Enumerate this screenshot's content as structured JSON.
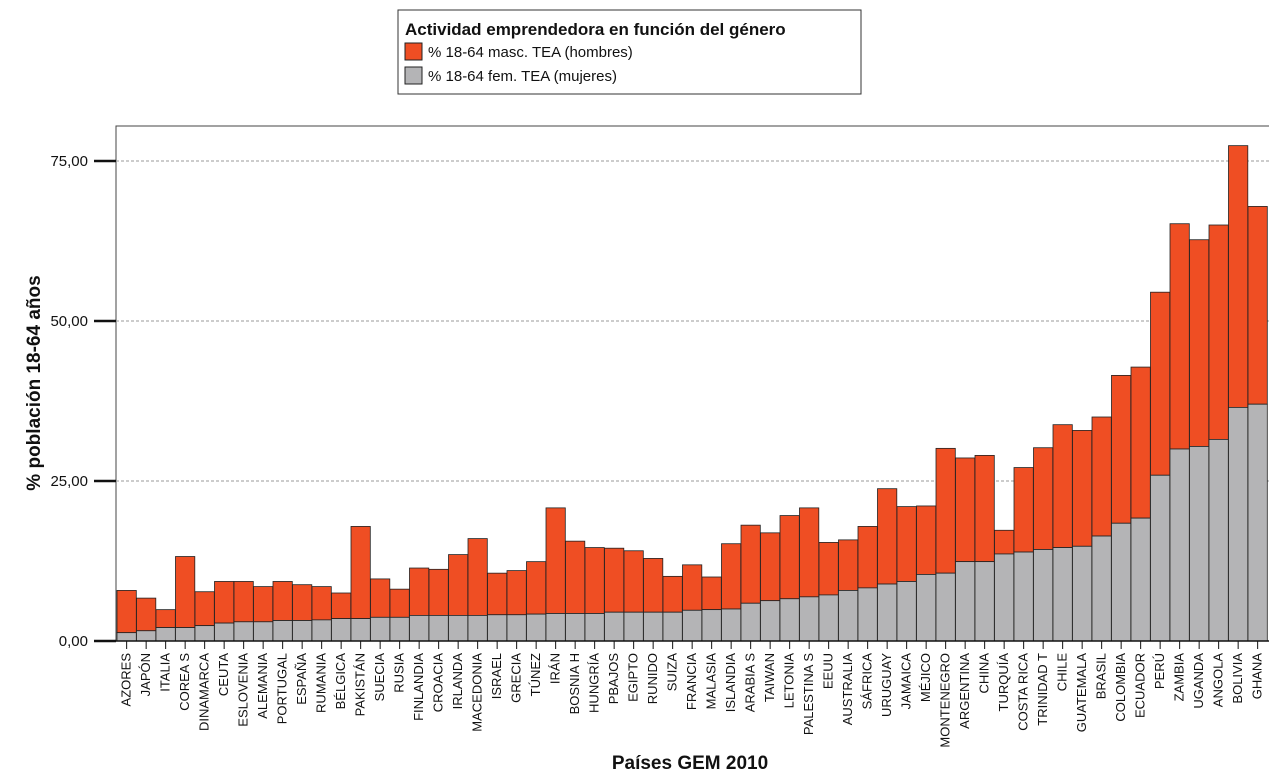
{
  "chart_data": {
    "type": "bar",
    "stacked": true,
    "title": "",
    "xlabel": "Países GEM 2010",
    "ylabel": "% población 18-64 años",
    "ylim": [
      0,
      80
    ],
    "yticks": [
      0,
      25,
      50,
      75
    ],
    "ytick_labels": [
      "0,00",
      "25,00",
      "50,00",
      "75,00"
    ],
    "grid": "horizontal dashed",
    "legend": {
      "title": "Actividad emprendedora en función del género",
      "position": "top-center"
    },
    "colors": {
      "hombres": "#ef4e23",
      "mujeres": "#b4b4b6",
      "gridline": "#9a9a9a"
    },
    "categories": [
      "AZORES",
      "JAPÓN",
      "ITALIA",
      "COREA S",
      "DINAMARCA",
      "CEUTA",
      "ESLOVENIA",
      "ALEMANIA",
      "PORTUGAL",
      "ESPAÑA",
      "RUMANIA",
      "BÉLGICA",
      "PAKISTÁN",
      "SUECIA",
      "RUSIA",
      "FINLANDIA",
      "CROACIA",
      "IRLANDA",
      "MACEDONIA",
      "ISRAEL",
      "GRECIA",
      "TÚNEZ",
      "IRÁN",
      "BOSNIA H",
      "HUNGRÍA",
      "PBAJOS",
      "EGIPTO",
      "RUNIDO",
      "SUIZA",
      "FRANCIA",
      "MALASIA",
      "ISLANDIA",
      "ARABIA S",
      "TAIWAN",
      "LETONIA",
      "PALESTINA S",
      "EEUU",
      "AUSTRALIA",
      "SÁFRICA",
      "URUGUAY",
      "JAMAICA",
      "MÉJICO",
      "MONTENEGRO",
      "ARGENTINA",
      "CHINA",
      "TURQUÍA",
      "COSTA RICA",
      "TRINIDAD T",
      "CHILE",
      "GUATEMALA",
      "BRASIL",
      "COLOMBIA",
      "ECUADOR",
      "PERÚ",
      "ZAMBIA",
      "UGANDA",
      "ANGOLA",
      "BOLIVIA",
      "GHANA"
    ],
    "series": [
      {
        "name": "% 18-64 fem. TEA (mujeres)",
        "values": [
          1.3,
          1.6,
          2.1,
          2.1,
          2.4,
          2.8,
          3.0,
          3.0,
          3.2,
          3.2,
          3.3,
          3.5,
          3.5,
          3.7,
          3.7,
          4.0,
          4.0,
          4.0,
          4.0,
          4.1,
          4.1,
          4.2,
          4.3,
          4.3,
          4.3,
          4.5,
          4.5,
          4.5,
          4.5,
          4.8,
          4.9,
          5.0,
          5.9,
          6.3,
          6.6,
          6.9,
          7.2,
          7.9,
          8.3,
          8.9,
          9.3,
          10.4,
          10.6,
          12.4,
          12.4,
          13.6,
          13.9,
          14.3,
          14.6,
          14.8,
          16.4,
          18.4,
          19.2,
          25.9,
          30.0,
          30.4,
          31.5,
          36.5,
          37.0
        ]
      },
      {
        "name": "% 18-64 masc. TEA (hombres)",
        "values": [
          6.6,
          5.1,
          2.8,
          11.1,
          5.3,
          6.5,
          6.3,
          5.5,
          6.1,
          5.6,
          5.2,
          4.0,
          14.4,
          6.0,
          4.4,
          7.4,
          7.2,
          9.5,
          12.0,
          6.5,
          6.9,
          8.2,
          16.5,
          11.3,
          10.3,
          10.0,
          9.6,
          8.4,
          5.6,
          7.1,
          5.1,
          10.2,
          12.2,
          10.6,
          13.0,
          13.9,
          8.2,
          7.9,
          9.6,
          14.9,
          11.7,
          10.7,
          19.5,
          16.2,
          16.6,
          3.7,
          13.2,
          15.9,
          19.2,
          18.1,
          18.6,
          23.1,
          23.6,
          28.6,
          35.2,
          32.3,
          33.5,
          40.9,
          30.9
        ]
      }
    ]
  }
}
